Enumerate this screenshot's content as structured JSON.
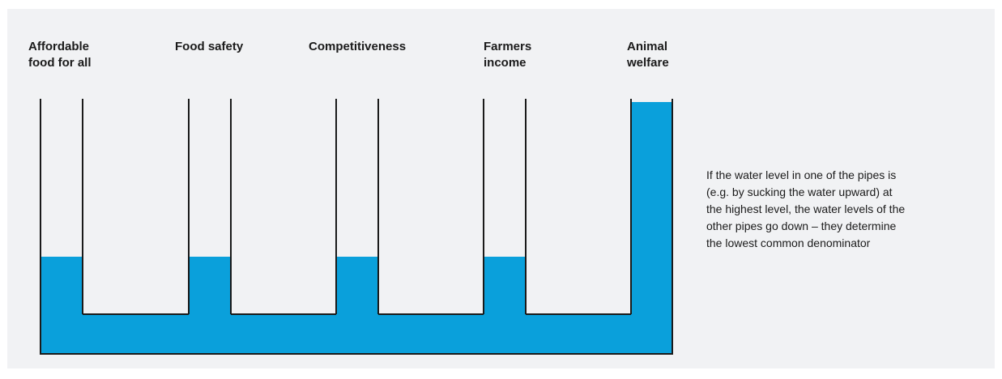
{
  "colors": {
    "water": "#0aa0db",
    "pipe_wall": "#1a1a1a",
    "panel_background": "#f1f2f4"
  },
  "pipes": [
    {
      "label": "Affordable\nfood for all",
      "water_level": "low"
    },
    {
      "label": "Food safety",
      "water_level": "low"
    },
    {
      "label": "Competitiveness",
      "water_level": "low"
    },
    {
      "label": "Farmers\nincome",
      "water_level": "low"
    },
    {
      "label": "Animal\nwelfare",
      "water_level": "highest"
    }
  ],
  "caption": "If the water level in one of the pipes is\n(e.g. by sucking the water upward) at\nthe highest level, the water levels of the\nother pipes go down – they determine\nthe lowest common denominator"
}
